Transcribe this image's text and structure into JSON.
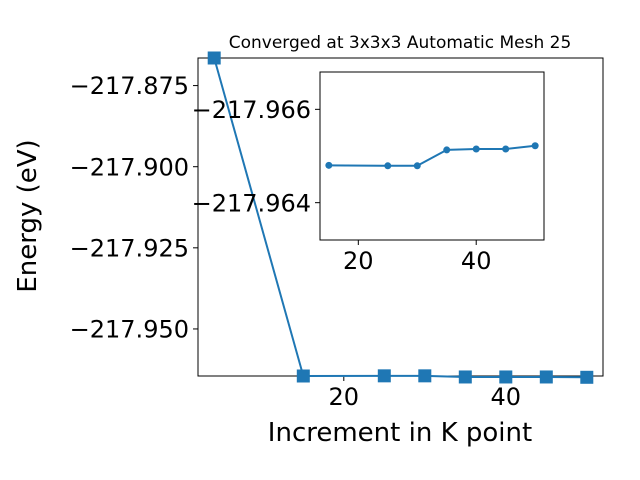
{
  "colors": {
    "series": "#1f77b4",
    "axis": "#000000",
    "background": "#ffffff"
  },
  "chart_data": [
    {
      "type": "line",
      "title": "Converged at 3x3x3 Automatic Mesh 25",
      "xlabel": "Increment in K point",
      "ylabel": "Energy (eV)",
      "marker": "square",
      "grid": false,
      "xlim": [
        2,
        52
      ],
      "ylim": [
        -217.9645,
        -217.8665
      ],
      "xticks": [
        20,
        40
      ],
      "xtick_labels": [
        "20",
        "40"
      ],
      "yticks": [
        -217.875,
        -217.9,
        -217.925,
        -217.95
      ],
      "ytick_labels": [
        "−217.875",
        "−217.900",
        "−217.925",
        "−217.950"
      ],
      "x": [
        4,
        15,
        25,
        30,
        35,
        40,
        45,
        50
      ],
      "y": [
        -217.8665,
        -217.9645,
        -217.96445,
        -217.96445,
        -217.9648,
        -217.9648,
        -217.9648,
        -217.9649
      ]
    },
    {
      "type": "line",
      "role": "inset",
      "marker": "circle",
      "grid": false,
      "xlim": [
        13.5,
        51.5
      ],
      "ylim": [
        -217.9632,
        -217.9668
      ],
      "xticks": [
        20,
        40
      ],
      "xtick_labels": [
        "20",
        "40"
      ],
      "yticks": [
        -217.966,
        -217.964
      ],
      "ytick_labels": [
        "−217.966",
        "−217.964"
      ],
      "x": [
        15,
        25,
        30,
        35,
        40,
        45,
        50
      ],
      "y": [
        -217.9648,
        -217.96479,
        -217.96479,
        -217.96513,
        -217.96515,
        -217.96515,
        -217.96522
      ]
    }
  ]
}
